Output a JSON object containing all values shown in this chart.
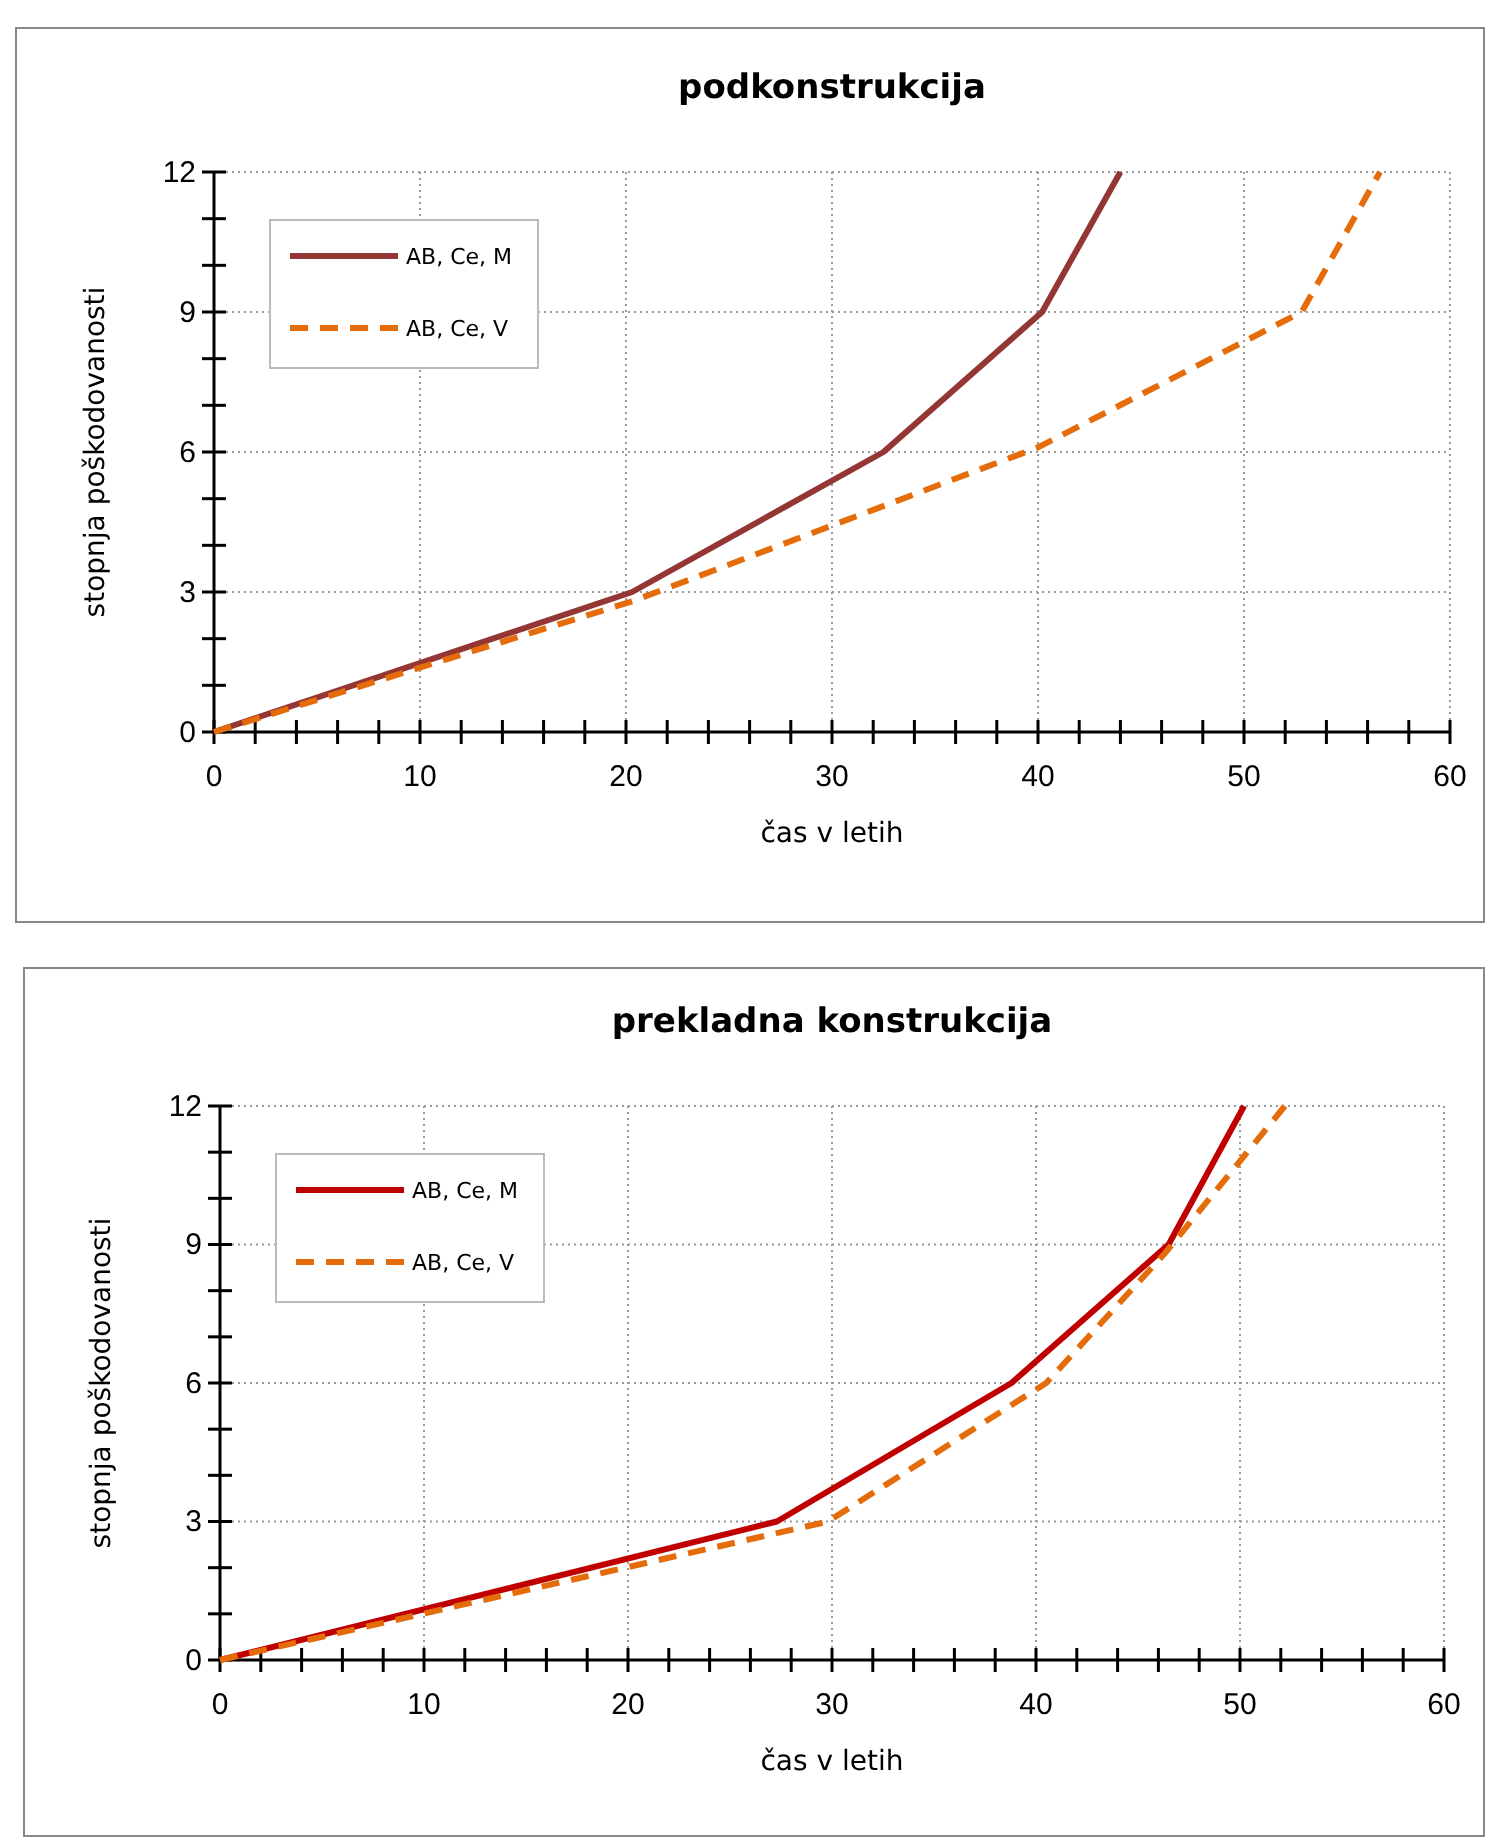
{
  "chart_data": [
    {
      "type": "line",
      "title": "podkonstrukcija",
      "xlabel": "čas v letih",
      "ylabel": "stopnja poškodovanosti",
      "xlim": [
        0,
        60
      ],
      "ylim": [
        0,
        12
      ],
      "xticks": [
        0,
        {
          "value": 2,
          "label": null
        },
        {
          "value": 4,
          "label": null
        },
        {
          "value": 6,
          "label": null
        },
        {
          "value": 8,
          "label": null
        },
        10,
        {
          "value": 12,
          "label": null
        },
        {
          "value": 14,
          "label": null
        },
        {
          "value": 16,
          "label": null
        },
        {
          "value": 18,
          "label": null
        },
        20,
        {
          "value": 22,
          "label": null
        },
        {
          "value": 24,
          "label": null
        },
        {
          "value": 26,
          "label": null
        },
        {
          "value": 28,
          "label": null
        },
        30,
        {
          "value": 32,
          "label": null
        },
        {
          "value": 34,
          "label": null
        },
        {
          "value": 36,
          "label": null
        },
        {
          "value": 38,
          "label": null
        },
        40,
        {
          "value": 42,
          "label": null
        },
        {
          "value": 44,
          "label": null
        },
        {
          "value": 46,
          "label": null
        },
        {
          "value": 48,
          "label": null
        },
        50,
        {
          "value": 52,
          "label": null
        },
        {
          "value": 54,
          "label": null
        },
        {
          "value": 56,
          "label": null
        },
        {
          "value": 58,
          "label": null
        },
        60
      ],
      "yticks": [
        0,
        {
          "value": 1,
          "label": null
        },
        {
          "value": 2,
          "label": null
        },
        3,
        {
          "value": 4,
          "label": null
        },
        {
          "value": 5,
          "label": null
        },
        6,
        {
          "value": 7,
          "label": null
        },
        {
          "value": 8,
          "label": null
        },
        9,
        {
          "value": 10,
          "label": null
        },
        {
          "value": 11,
          "label": null
        },
        12
      ],
      "grid": true,
      "legend": "top left",
      "series": [
        {
          "name": "AB, Ce, M",
          "color": "#943634",
          "line_style": "solid",
          "x": [
            0,
            20.3,
            32.5,
            40.2,
            44
          ],
          "values": [
            0,
            3,
            6,
            9,
            12
          ]
        },
        {
          "name": "AB, Ce, V",
          "color": "#e46c0a",
          "line_style": "dashed",
          "x": [
            0,
            20.3,
            40,
            52.8,
            56.6
          ],
          "values": [
            0,
            2.8,
            6.1,
            9,
            12
          ]
        }
      ]
    },
    {
      "type": "line",
      "title": "prekladna konstrukcija",
      "xlabel": "čas v letih",
      "ylabel": "stopnja poškodovanosti",
      "xlim": [
        0,
        60
      ],
      "ylim": [
        0,
        12
      ],
      "xticks": [
        0,
        {
          "value": 2,
          "label": null
        },
        {
          "value": 4,
          "label": null
        },
        {
          "value": 6,
          "label": null
        },
        {
          "value": 8,
          "label": null
        },
        10,
        {
          "value": 12,
          "label": null
        },
        {
          "value": 14,
          "label": null
        },
        {
          "value": 16,
          "label": null
        },
        {
          "value": 18,
          "label": null
        },
        20,
        {
          "value": 22,
          "label": null
        },
        {
          "value": 24,
          "label": null
        },
        {
          "value": 26,
          "label": null
        },
        {
          "value": 28,
          "label": null
        },
        30,
        {
          "value": 32,
          "label": null
        },
        {
          "value": 34,
          "label": null
        },
        {
          "value": 36,
          "label": null
        },
        {
          "value": 38,
          "label": null
        },
        40,
        {
          "value": 42,
          "label": null
        },
        {
          "value": 44,
          "label": null
        },
        {
          "value": 46,
          "label": null
        },
        {
          "value": 48,
          "label": null
        },
        50,
        {
          "value": 52,
          "label": null
        },
        {
          "value": 54,
          "label": null
        },
        {
          "value": 56,
          "label": null
        },
        {
          "value": 58,
          "label": null
        },
        60
      ],
      "yticks": [
        0,
        {
          "value": 1,
          "label": null
        },
        {
          "value": 2,
          "label": null
        },
        3,
        {
          "value": 4,
          "label": null
        },
        {
          "value": 5,
          "label": null
        },
        6,
        {
          "value": 7,
          "label": null
        },
        {
          "value": 8,
          "label": null
        },
        9,
        {
          "value": 10,
          "label": null
        },
        {
          "value": 11,
          "label": null
        },
        12
      ],
      "grid": true,
      "legend": "top left",
      "series": [
        {
          "name": "AB, Ce, M",
          "color": "#c00000",
          "line_style": "solid",
          "x": [
            0,
            27.3,
            38.8,
            46.5,
            50.2
          ],
          "values": [
            0,
            3,
            6,
            9,
            12
          ]
        },
        {
          "name": "AB, Ce, V",
          "color": "#e46c0a",
          "line_style": "dashed",
          "x": [
            0,
            29.8,
            40.5,
            46.3,
            52.2
          ],
          "values": [
            0,
            3,
            6,
            8.8,
            12
          ]
        }
      ]
    }
  ]
}
